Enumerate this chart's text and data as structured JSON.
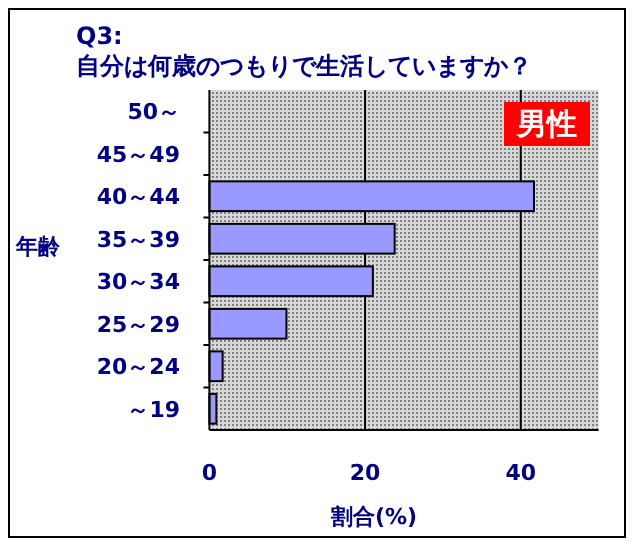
{
  "chart_data": {
    "type": "bar",
    "orientation": "horizontal",
    "title": "Q3:\n自分は何歳のつもりで生活していますか？",
    "xlabel": "割合(%)",
    "ylabel": "年齢",
    "categories": [
      "50～",
      "45～49",
      "40～44",
      "35～39",
      "30～34",
      "25～29",
      "20～24",
      "～19"
    ],
    "values": [
      0,
      0,
      41.7,
      23.8,
      21.0,
      9.9,
      1.7,
      0.9
    ],
    "color": "#9999ff",
    "xlim": [
      0,
      50
    ],
    "xticks": [
      0,
      20,
      40
    ],
    "grid": "x",
    "annotations": [
      "男性"
    ]
  }
}
